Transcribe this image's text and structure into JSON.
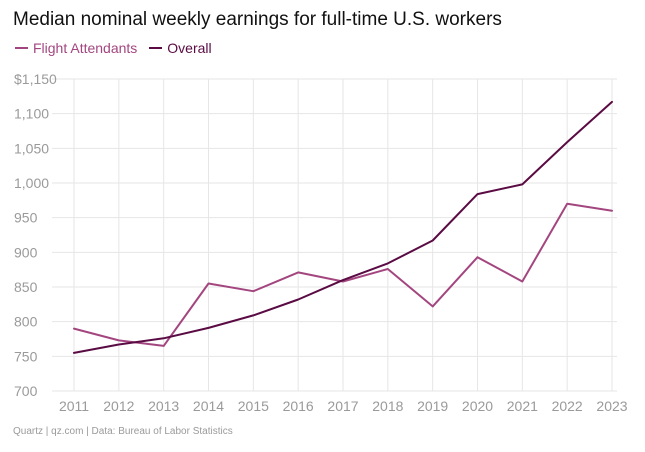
{
  "chart_data": {
    "type": "line",
    "title": "Median nominal weekly earnings for full-time U.S. workers",
    "xlabel": "",
    "ylabel": "",
    "x": [
      "2011",
      "2012",
      "2013",
      "2014",
      "2015",
      "2016",
      "2017",
      "2018",
      "2019",
      "2020",
      "2021",
      "2022",
      "2023"
    ],
    "series": [
      {
        "name": "Flight Attendants",
        "color": "#a3467f",
        "values": [
          790,
          773,
          765,
          855,
          844,
          871,
          858,
          876,
          822,
          893,
          858,
          970,
          960
        ]
      },
      {
        "name": "Overall",
        "color": "#5a0b43",
        "values": [
          755,
          767,
          776,
          791,
          809,
          832,
          860,
          884,
          917,
          984,
          998,
          1059,
          1117
        ]
      }
    ],
    "ylim": [
      700,
      1150
    ],
    "yticks": [
      700,
      750,
      800,
      850,
      900,
      950,
      1000,
      1050,
      1100,
      1150
    ],
    "ytick_labels": [
      "700",
      "750",
      "800",
      "850",
      "900",
      "950",
      "1,000",
      "1,050",
      "1,100",
      "$1,150"
    ],
    "grid": true,
    "legend_position": "top-left"
  },
  "footer": "Quartz | qz.com | Data: Bureau of Labor Statistics"
}
